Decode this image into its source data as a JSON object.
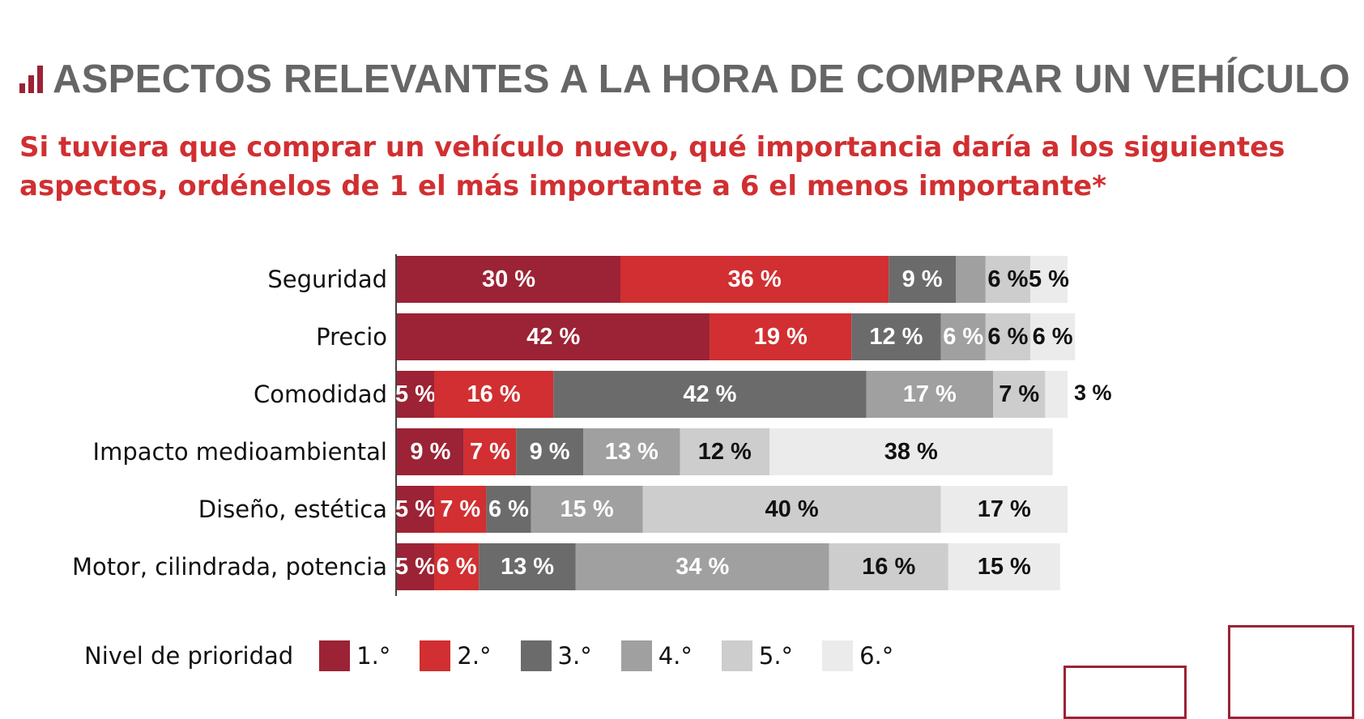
{
  "header": {
    "title": "ASPECTOS RELEVANTES A LA HORA DE COMPRAR UN VEHÍCULO",
    "subtitle_line1": "Si tuviera que comprar un vehículo nuevo, qué importancia daría a los siguientes",
    "subtitle_line2": "aspectos, ordénelos de 1 el más importante a 6 el menos importante*"
  },
  "legend": {
    "title": "Nivel de prioridad",
    "items": [
      "1.°",
      "2.°",
      "3.°",
      "4.°",
      "5.°",
      "6.°"
    ]
  },
  "colors": {
    "accent": "#9b2335",
    "series": [
      "#9b2335",
      "#d12f31",
      "#6b6b6b",
      "#a0a0a0",
      "#cdcdcd",
      "#ebebeb"
    ],
    "label_text": [
      "#ffffff",
      "#ffffff",
      "#ffffff",
      "#ffffff",
      "#111111",
      "#111111"
    ]
  },
  "chart_data": {
    "type": "bar",
    "orientation": "horizontal",
    "stacked": true,
    "categories": [
      "Seguridad",
      "Precio",
      "Comodidad",
      "Impacto medioambiental",
      "Diseño, estética",
      "Motor, cilindrada, potencia"
    ],
    "series": [
      {
        "name": "1.°",
        "values": [
          30,
          42,
          5,
          9,
          5,
          5
        ]
      },
      {
        "name": "2.°",
        "values": [
          36,
          19,
          16,
          7,
          7,
          6
        ]
      },
      {
        "name": "3.°",
        "values": [
          9,
          12,
          42,
          9,
          6,
          13
        ]
      },
      {
        "name": "4.°",
        "values": [
          4,
          6,
          17,
          13,
          15,
          34
        ]
      },
      {
        "name": "5.°",
        "values": [
          6,
          6,
          7,
          12,
          40,
          16
        ]
      },
      {
        "name": "6.°",
        "values": [
          5,
          6,
          3,
          38,
          17,
          15
        ]
      }
    ],
    "value_suffix": " %",
    "xlim": [
      0,
      100
    ],
    "grid": false
  }
}
